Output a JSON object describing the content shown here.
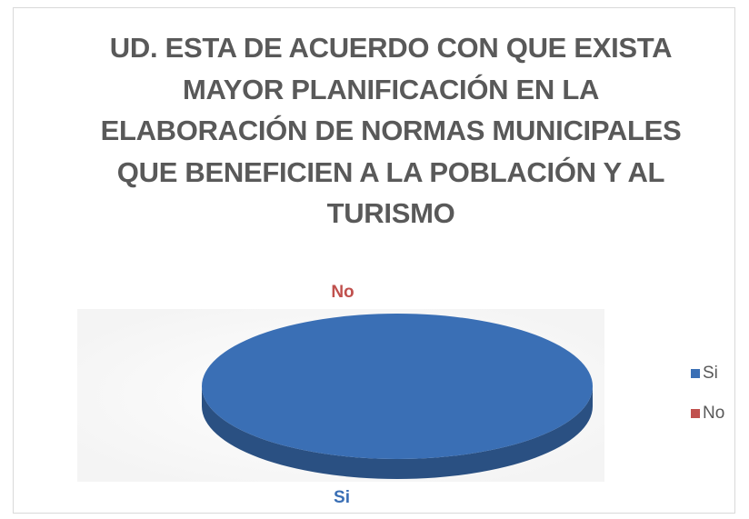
{
  "chart_data": {
    "type": "pie",
    "title": "UD. ESTA DE ACUERDO CON QUE EXISTA MAYOR PLANIFICACIÓN EN LA ELABORACIÓN DE NORMAS MUNICIPALES QUE BENEFICIEN A LA POBLACIÓN Y AL TURISMO",
    "categories": [
      "Si",
      "No"
    ],
    "values": [
      100,
      0
    ],
    "colors": [
      "#3a6fb5",
      "#c0504d"
    ],
    "legend": "right",
    "three_d": true
  }
}
